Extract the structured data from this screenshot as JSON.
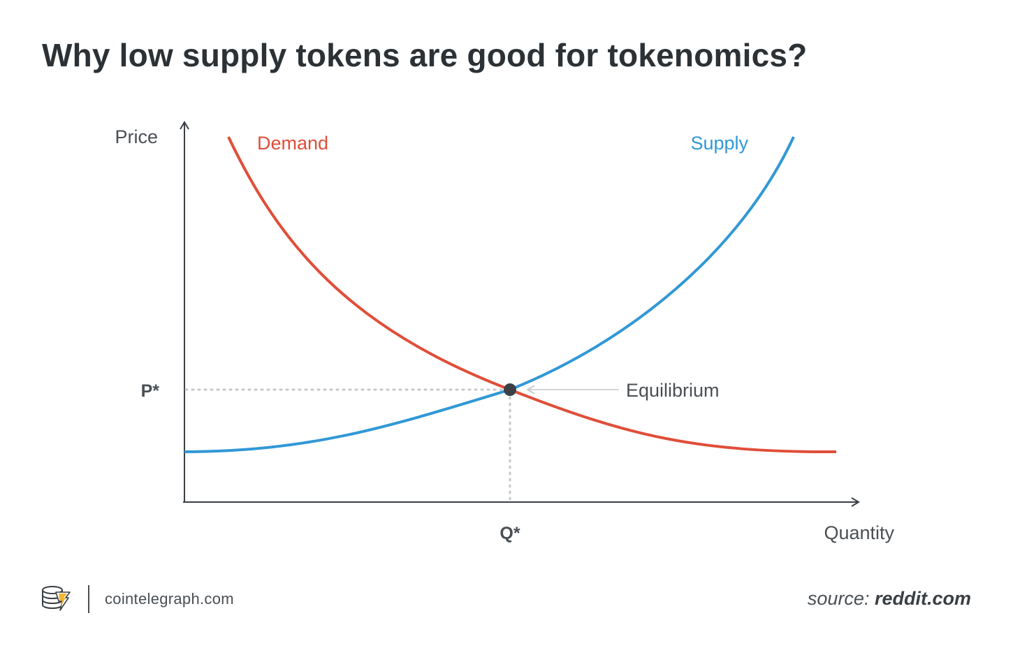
{
  "header": {
    "title": "Why low supply tokens are good for tokenomics?"
  },
  "chart_data": {
    "type": "line",
    "title": "Why low supply tokens are good for tokenomics?",
    "ylabel": "Price",
    "xlabel": "Quantity",
    "xlim": [
      0,
      100
    ],
    "ylim": [
      0,
      100
    ],
    "grid": false,
    "series": [
      {
        "name": "Demand",
        "color": "#e04e39",
        "x": [
          7,
          20,
          35,
          50,
          65,
          80,
          100
        ],
        "y": [
          93,
          67,
          45,
          29,
          20,
          14,
          13
        ]
      },
      {
        "name": "Supply",
        "color": "#3198d6",
        "x": [
          0,
          15,
          30,
          50,
          65,
          80,
          93
        ],
        "y": [
          13,
          15,
          20,
          29,
          40,
          58,
          93
        ]
      }
    ],
    "equilibrium": {
      "label": "Equilibrium",
      "x": 50,
      "y": 29,
      "x_label": "Q*",
      "y_label": "P*"
    }
  },
  "footer": {
    "logo_icon": "cointelegraph-logo-icon",
    "site": "cointelegraph.com",
    "source_label": "source:",
    "source_value": "reddit.com"
  }
}
